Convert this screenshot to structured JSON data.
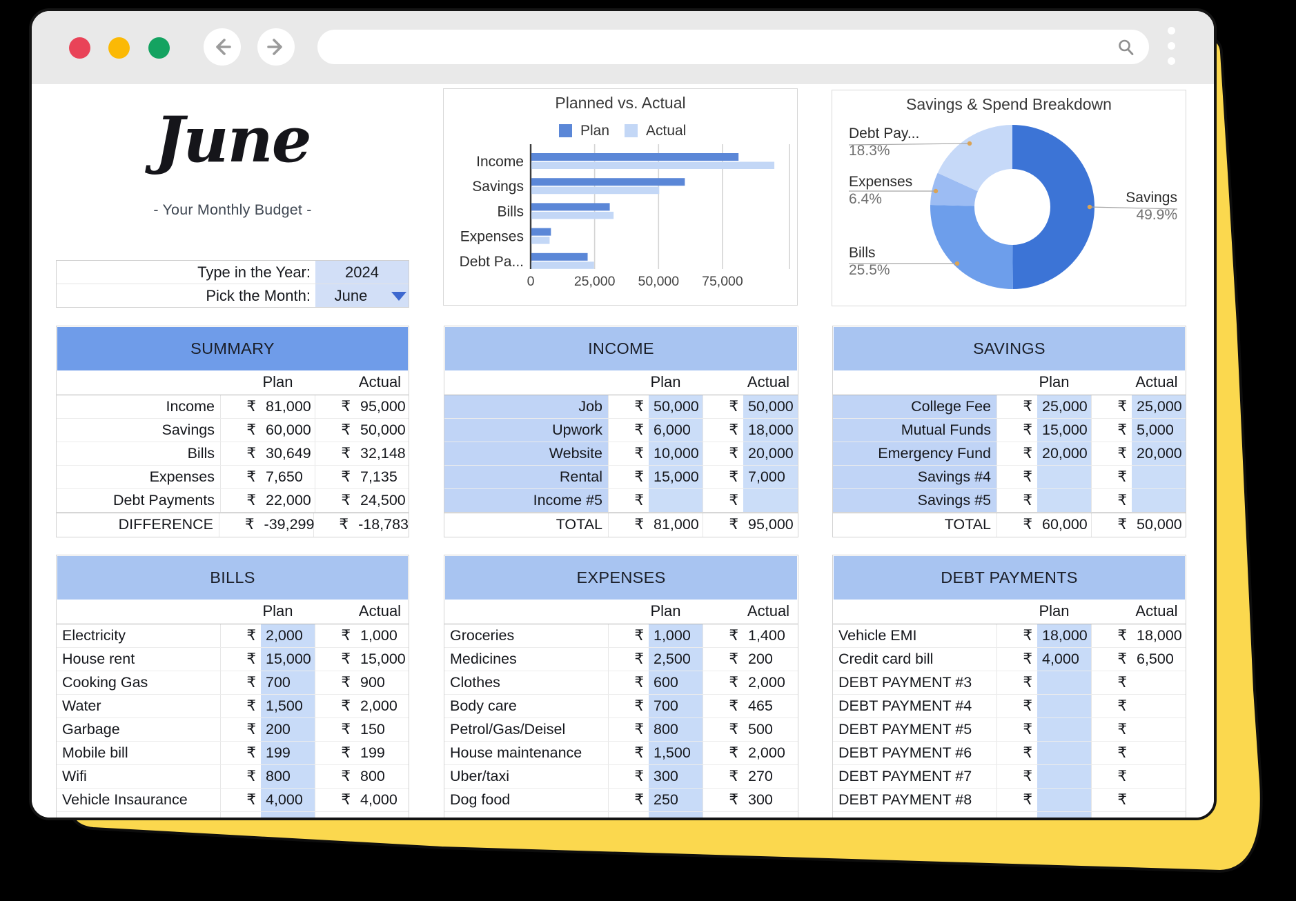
{
  "window": {
    "title": "browser mockup",
    "toolbar": {
      "traffic_lights": [
        "close",
        "minimize",
        "zoom"
      ],
      "back_icon": "back-arrow",
      "forward_icon": "forward-arrow",
      "url_value": "",
      "search_icon": "magnifier",
      "menu_icon": "three-dots"
    }
  },
  "header": {
    "month": "June",
    "subtitle": "- Your Monthly Budget -"
  },
  "selector": {
    "year_label": "Type in the Year:",
    "year_value": "2024",
    "month_label": "Pick the Month:",
    "month_value": "June"
  },
  "currency": "₹",
  "colors": {
    "accent_yellow": "#fbd84e",
    "band_dark": "#6f9ce9",
    "band_light": "#a8c4f1",
    "cell_blue_label": "#c0d4f6",
    "cell_blue_amount": "#cbddf8",
    "plan_strip_blue": "#c8dbf8",
    "bar_plan": "#5b87d7",
    "bar_actual": "#c3d7f6",
    "donut_savings": "#3c74d6",
    "donut_bills": "#6d9eeb",
    "donut_expenses": "#9cbcf3",
    "donut_debt": "#c6d9f8"
  },
  "chart_data": [
    {
      "type": "bar",
      "title": "Planned vs. Actual",
      "orientation": "horizontal",
      "categories": [
        "Income",
        "Savings",
        "Bills",
        "Expenses",
        "Debt Pa..."
      ],
      "series": [
        {
          "name": "Plan",
          "color": "#5b87d7",
          "values": [
            81000,
            60000,
            30649,
            7650,
            22000
          ]
        },
        {
          "name": "Actual",
          "color": "#c3d7f6",
          "values": [
            95000,
            50000,
            32148,
            7135,
            24500
          ]
        }
      ],
      "xlabel": "",
      "ylabel": "",
      "xlim": [
        0,
        101200
      ],
      "ticks": [
        {
          "v": 0,
          "label": "0"
        },
        {
          "v": 25000,
          "label": "25,000"
        },
        {
          "v": 50000,
          "label": "50,000"
        },
        {
          "v": 75000,
          "label": "75,000"
        }
      ],
      "grid": true,
      "legend_position": "top"
    },
    {
      "type": "pie",
      "title": "Savings & Spend Breakdown",
      "donut": true,
      "slices": [
        {
          "label": "Savings",
          "pct": 49.9,
          "pct_label": "49.9%",
          "color": "#3c74d6",
          "side": "right"
        },
        {
          "label": "Bills",
          "pct": 25.5,
          "pct_label": "25.5%",
          "color": "#6d9eeb",
          "side": "left"
        },
        {
          "label": "Expenses",
          "pct": 6.4,
          "pct_label": "6.4%",
          "color": "#9cbcf3",
          "side": "left"
        },
        {
          "label": "Debt Pay...",
          "pct": 18.3,
          "pct_label": "18.3%",
          "color": "#c6d9f8",
          "side": "left"
        }
      ],
      "legend_position": "labels"
    }
  ],
  "tables": {
    "summary": {
      "title": "SUMMARY",
      "col_headers": [
        "Plan",
        "Actual"
      ],
      "rows": [
        {
          "label": "Income",
          "plan": "81,000",
          "actual": "95,000"
        },
        {
          "label": "Savings",
          "plan": "60,000",
          "actual": "50,000"
        },
        {
          "label": "Bills",
          "plan": "30,649",
          "actual": "32,148"
        },
        {
          "label": "Expenses",
          "plan": "7,650",
          "actual": "7,135"
        },
        {
          "label": "Debt Payments",
          "plan": "22,000",
          "actual": "24,500"
        }
      ],
      "footer": {
        "label": "DIFFERENCE",
        "plan": "-39,299",
        "actual": "-18,783"
      }
    },
    "income": {
      "title": "INCOME",
      "col_headers": [
        "Plan",
        "Actual"
      ],
      "rows": [
        {
          "label": "Job",
          "plan": "50,000",
          "actual": "50,000"
        },
        {
          "label": "Upwork",
          "plan": "6,000",
          "actual": "18,000"
        },
        {
          "label": "Website",
          "plan": "10,000",
          "actual": "20,000"
        },
        {
          "label": "Rental",
          "plan": "15,000",
          "actual": "7,000"
        },
        {
          "label": "Income #5",
          "plan": "",
          "actual": ""
        }
      ],
      "footer": {
        "label": "TOTAL",
        "plan": "81,000",
        "actual": "95,000"
      }
    },
    "savings": {
      "title": "SAVINGS",
      "col_headers": [
        "Plan",
        "Actual"
      ],
      "rows": [
        {
          "label": "College Fee",
          "plan": "25,000",
          "actual": "25,000"
        },
        {
          "label": "Mutual Funds",
          "plan": "15,000",
          "actual": "5,000"
        },
        {
          "label": "Emergency Fund",
          "plan": "20,000",
          "actual": "20,000"
        },
        {
          "label": "Savings #4",
          "plan": "",
          "actual": ""
        },
        {
          "label": "Savings #5",
          "plan": "",
          "actual": ""
        }
      ],
      "footer": {
        "label": "TOTAL",
        "plan": "60,000",
        "actual": "50,000"
      }
    },
    "bills": {
      "title": "BILLS",
      "col_headers": [
        "Plan",
        "Actual"
      ],
      "rows": [
        {
          "label": "Electricity",
          "plan": "2,000",
          "actual": "1,000"
        },
        {
          "label": "House rent",
          "plan": "15,000",
          "actual": "15,000"
        },
        {
          "label": "Cooking Gas",
          "plan": "700",
          "actual": "900"
        },
        {
          "label": "Water",
          "plan": "1,500",
          "actual": "2,000"
        },
        {
          "label": "Garbage",
          "plan": "200",
          "actual": "150"
        },
        {
          "label": "Mobile bill",
          "plan": "199",
          "actual": "199"
        },
        {
          "label": "Wifi",
          "plan": "800",
          "actual": "800"
        },
        {
          "label": "Vehicle Insaurance",
          "plan": "4,000",
          "actual": "4,000"
        }
      ],
      "footer": null
    },
    "expenses": {
      "title": "EXPENSES",
      "col_headers": [
        "Plan",
        "Actual"
      ],
      "rows": [
        {
          "label": "Groceries",
          "plan": "1,000",
          "actual": "1,400"
        },
        {
          "label": "Medicines",
          "plan": "2,500",
          "actual": "200"
        },
        {
          "label": "Clothes",
          "plan": "600",
          "actual": "2,000"
        },
        {
          "label": "Body care",
          "plan": "700",
          "actual": "465"
        },
        {
          "label": "Petrol/Gas/Deisel",
          "plan": "800",
          "actual": "500"
        },
        {
          "label": "House maintenance",
          "plan": "1,500",
          "actual": "2,000"
        },
        {
          "label": "Uber/taxi",
          "plan": "300",
          "actual": "270"
        },
        {
          "label": "Dog food",
          "plan": "250",
          "actual": "300"
        }
      ],
      "footer": null
    },
    "debt": {
      "title": "DEBT PAYMENTS",
      "col_headers": [
        "Plan",
        "Actual"
      ],
      "rows": [
        {
          "label": "Vehicle EMI",
          "plan": "18,000",
          "actual": "18,000"
        },
        {
          "label": "Credit card bill",
          "plan": "4,000",
          "actual": "6,500"
        },
        {
          "label": "DEBT PAYMENT #3",
          "plan": "",
          "actual": ""
        },
        {
          "label": "DEBT PAYMENT #4",
          "plan": "",
          "actual": ""
        },
        {
          "label": "DEBT PAYMENT #5",
          "plan": "",
          "actual": ""
        },
        {
          "label": "DEBT PAYMENT #6",
          "plan": "",
          "actual": ""
        },
        {
          "label": "DEBT PAYMENT #7",
          "plan": "",
          "actual": ""
        },
        {
          "label": "DEBT PAYMENT #8",
          "plan": "",
          "actual": ""
        }
      ],
      "footer": null
    }
  }
}
